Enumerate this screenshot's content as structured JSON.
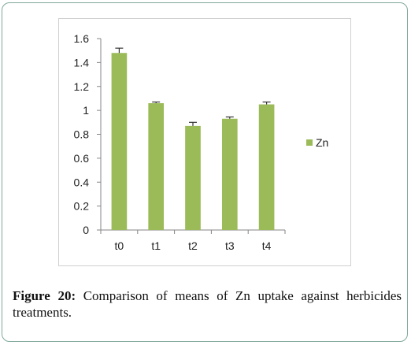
{
  "chart_data": {
    "type": "bar",
    "categories": [
      "t0",
      "t1",
      "t2",
      "t3",
      "t4"
    ],
    "series": [
      {
        "name": "Zn",
        "values": [
          1.48,
          1.06,
          0.87,
          0.93,
          1.05
        ],
        "error": [
          0.04,
          0.01,
          0.03,
          0.015,
          0.02
        ],
        "color": "#9bbb59"
      }
    ],
    "ylim": [
      0,
      1.6
    ],
    "yticks": [
      "0",
      "0.2",
      "0.4",
      "0.6",
      "0.8",
      "1",
      "1.2",
      "1.4",
      "1.6"
    ],
    "legend_position": "right",
    "grid": false
  },
  "caption": {
    "label": "Figure 20:",
    "text": "Comparison of means of Zn uptake against herbicides treatments."
  },
  "colors": {
    "frame_border": "#7fa89a",
    "bar": "#9bbb59",
    "axis": "#868686"
  }
}
